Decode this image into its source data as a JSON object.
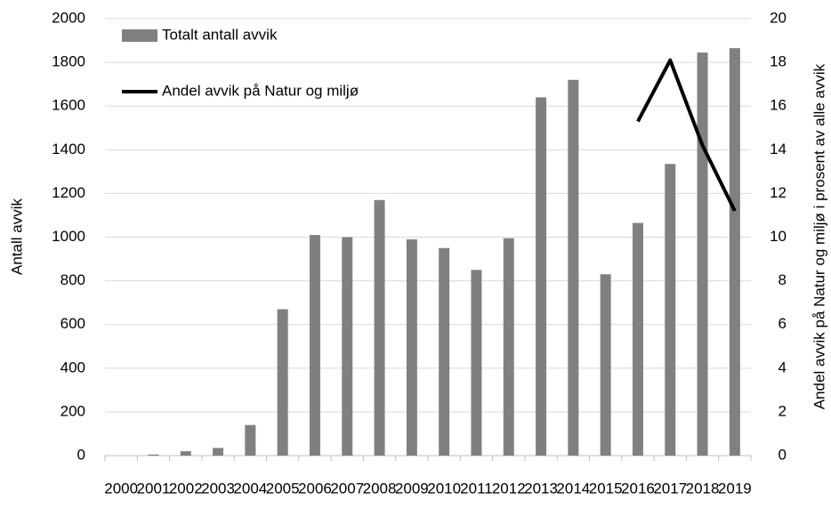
{
  "chart_data": {
    "type": "bar",
    "categories": [
      "2000",
      "2001",
      "2002",
      "2003",
      "2004",
      "2005",
      "2006",
      "2007",
      "2008",
      "2009",
      "2010",
      "2011",
      "2012",
      "2013",
      "2014",
      "2015",
      "2016",
      "2017",
      "2018",
      "2019"
    ],
    "series": [
      {
        "name": "Totalt antall avvik",
        "type": "bar",
        "color": "#808080",
        "values": [
          0,
          5,
          20,
          35,
          140,
          670,
          1010,
          1000,
          1170,
          990,
          950,
          850,
          995,
          1640,
          1720,
          830,
          1065,
          1335,
          1845,
          1865
        ]
      },
      {
        "name": "Andel avvik på Natur og miljø",
        "type": "line",
        "color": "#000000",
        "axis": "y2",
        "values": [
          null,
          null,
          null,
          null,
          null,
          null,
          null,
          null,
          null,
          null,
          null,
          null,
          null,
          null,
          null,
          null,
          15.3,
          18.1,
          14.2,
          11.2
        ]
      }
    ],
    "ylabel": "Antall avvik",
    "y2label": "Andel avvik på Natur og miljø i prosent av alle avvik",
    "ylim": [
      0,
      2000
    ],
    "yticks": [
      0,
      200,
      400,
      600,
      800,
      1000,
      1200,
      1400,
      1600,
      1800,
      2000
    ],
    "y2lim": [
      0,
      20
    ],
    "y2ticks": [
      0,
      2,
      4,
      6,
      8,
      10,
      12,
      14,
      16,
      18,
      20
    ],
    "grid": true,
    "legend": "upper left"
  }
}
